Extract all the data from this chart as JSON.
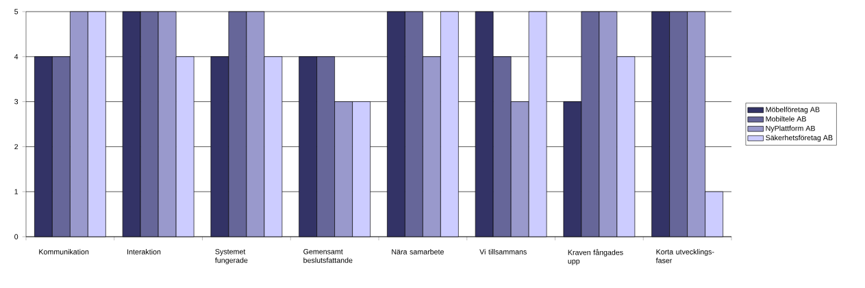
{
  "chart_data": {
    "type": "bar",
    "categories": [
      "Kommunikation",
      "Interaktion",
      "Systemet fungerade",
      "Gemensamt beslutsfattande",
      "Nära samarbete",
      "Vi tillsammans",
      "Kraven fångades upp",
      "Korta utvecklings-faser"
    ],
    "series": [
      {
        "name": "Möbelföretag AB",
        "color": "#333366",
        "values": [
          4,
          5,
          4,
          4,
          5,
          5,
          3,
          5
        ]
      },
      {
        "name": "Mobiltele AB",
        "color": "#666699",
        "values": [
          4,
          5,
          5,
          4,
          5,
          4,
          5,
          5
        ]
      },
      {
        "name": "NyPlattform AB",
        "color": "#9999cc",
        "values": [
          5,
          5,
          5,
          3,
          4,
          3,
          5,
          5
        ]
      },
      {
        "name": "Säkerhetsföretag AB",
        "color": "#ccccff",
        "values": [
          5,
          4,
          4,
          3,
          5,
          5,
          4,
          1
        ]
      }
    ],
    "ylim": [
      0,
      5
    ],
    "yticks": [
      0,
      1,
      2,
      3,
      4,
      5
    ],
    "grid": "y",
    "legend": "right"
  }
}
